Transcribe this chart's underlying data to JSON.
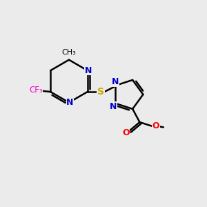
{
  "background_color": "#ebebeb",
  "bond_color": "#000000",
  "atom_colors": {
    "N": "#0000cc",
    "S": "#ccaa00",
    "O": "#ff0000",
    "F": "#ff00cc",
    "C": "#000000"
  },
  "figsize": [
    3.0,
    3.0
  ],
  "dpi": 100
}
